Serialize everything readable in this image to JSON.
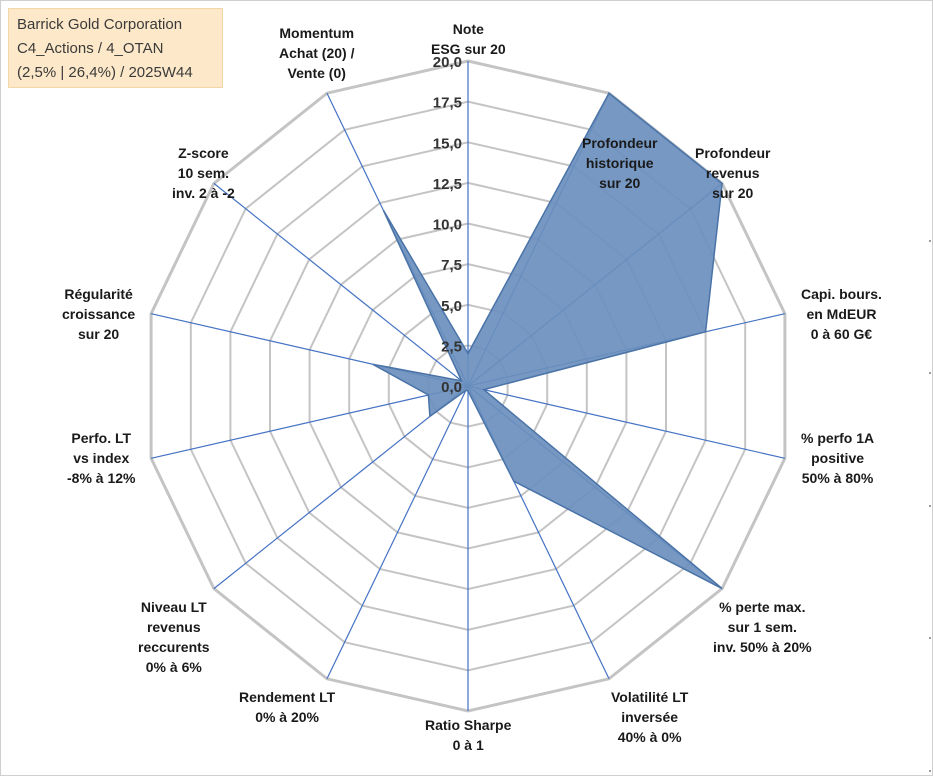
{
  "title_box": {
    "company": "Barrick Gold Corporation",
    "portfolio": "C4_Actions / 4_OTAN",
    "stats": "(2,5% | 26,4%) / 2025W44"
  },
  "chart_data": {
    "type": "radar",
    "title": "Barrick Gold Corporation",
    "rlim": [
      0,
      20
    ],
    "tick_step": 2.5,
    "scale_labels": [
      "0,0",
      "2,5",
      "5,0",
      "7,5",
      "10,0",
      "12,5",
      "15,0",
      "17,5",
      "20,0"
    ],
    "axes": [
      {
        "label": [
          "Note",
          "ESG sur 20"
        ],
        "value": 2
      },
      {
        "label": [
          "Profondeur",
          "historique",
          "sur 20"
        ],
        "value": 20
      },
      {
        "label": [
          "Profondeur",
          "revenus",
          "sur 20"
        ],
        "value": 20
      },
      {
        "label": [
          "Capi. bours.",
          "en MdEUR",
          "0 à 60 G€"
        ],
        "value": 15
      },
      {
        "label": [
          "% perfo 1A",
          "positive",
          "50% à 80%"
        ],
        "value": 1
      },
      {
        "label": [
          "% perte max.",
          "sur 1 sem.",
          "inv. 50% à 20%"
        ],
        "value": 20
      },
      {
        "label": [
          "Volatilité LT",
          "inversée",
          "40% à 0%"
        ],
        "value": 6.5
      },
      {
        "label": [
          "Ratio Sharpe",
          "0 à 1"
        ],
        "value": 0.3
      },
      {
        "label": [
          "Rendement LT",
          "0% à 20%"
        ],
        "value": 0.3
      },
      {
        "label": [
          "Niveau LT",
          "revenus",
          "reccurents",
          "0% à 6%"
        ],
        "value": 3
      },
      {
        "label": [
          "Perfo. LT",
          "vs index",
          "-8% à 12%"
        ],
        "value": 2.5
      },
      {
        "label": [
          "Régularité",
          "croissance",
          "sur 20"
        ],
        "value": 6
      },
      {
        "label": [
          "Z-score",
          "10 sem.",
          "inv. 2 à -2"
        ],
        "value": 0.5
      },
      {
        "label": [
          "Momentum",
          "Achat (20) /",
          "Vente (0)"
        ],
        "value": 12
      }
    ],
    "grid": true,
    "fill_color": "#6a8fbd",
    "line_color": "#4a73a8",
    "grid_color": "#c4c4c4",
    "axis_line_color": "#4472c4"
  }
}
